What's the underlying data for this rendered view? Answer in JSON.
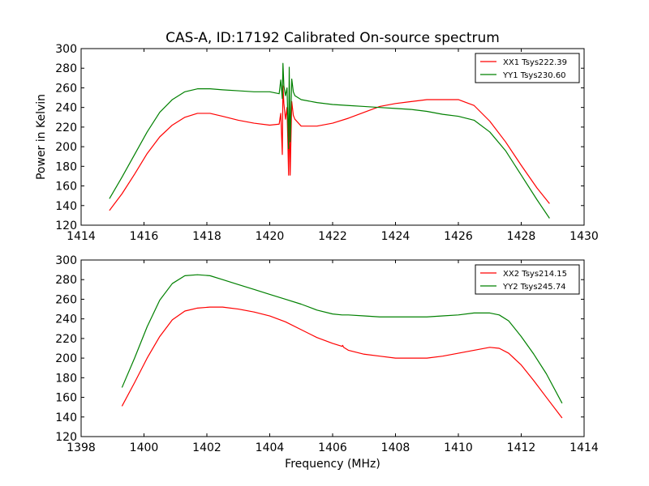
{
  "title": "CAS-A, ID:17192 Calibrated On-source spectrum",
  "colors": {
    "red": "#ff0000",
    "green": "#008000",
    "axes": "#000000",
    "background": "#ffffff"
  },
  "chart_data": [
    {
      "type": "line",
      "ylabel": "Power in Kelvin",
      "xlabel": "",
      "xlim": [
        1414,
        1430
      ],
      "ylim": [
        120,
        300
      ],
      "xticks": [
        1414,
        1416,
        1418,
        1420,
        1422,
        1424,
        1426,
        1428,
        1430
      ],
      "yticks": [
        120,
        140,
        160,
        180,
        200,
        220,
        240,
        260,
        280,
        300
      ],
      "legend_position": "top-right",
      "series": [
        {
          "name": "XX1 Tsys222.39",
          "color": "#ff0000",
          "x": [
            1414.9,
            1415.3,
            1415.7,
            1416.1,
            1416.5,
            1416.9,
            1417.3,
            1417.7,
            1418.1,
            1418.5,
            1419.0,
            1419.5,
            1420.0,
            1420.3,
            1420.35,
            1420.4,
            1420.42,
            1420.45,
            1420.5,
            1420.55,
            1420.6,
            1420.62,
            1420.65,
            1420.7,
            1420.75,
            1420.8,
            1421.0,
            1421.5,
            1422.0,
            1422.5,
            1423.0,
            1423.5,
            1424.0,
            1424.5,
            1425.0,
            1425.5,
            1426.0,
            1426.5,
            1427.0,
            1427.5,
            1428.0,
            1428.5,
            1428.9
          ],
          "y": [
            135,
            152,
            172,
            193,
            210,
            222,
            230,
            234,
            234,
            231,
            227,
            224,
            222,
            223,
            234,
            192,
            262,
            244,
            228,
            240,
            171,
            244,
            171,
            246,
            232,
            228,
            221,
            221,
            224,
            229,
            235,
            241,
            244,
            246,
            248,
            248,
            248,
            242,
            226,
            205,
            181,
            158,
            142
          ]
        },
        {
          "name": "YY1 Tsys230.60",
          "color": "#008000",
          "x": [
            1414.9,
            1415.3,
            1415.7,
            1416.1,
            1416.5,
            1416.9,
            1417.3,
            1417.7,
            1418.1,
            1418.5,
            1419.0,
            1419.5,
            1420.0,
            1420.3,
            1420.35,
            1420.4,
            1420.42,
            1420.45,
            1420.5,
            1420.55,
            1420.6,
            1420.62,
            1420.65,
            1420.7,
            1420.75,
            1420.8,
            1421.0,
            1421.5,
            1422.0,
            1422.5,
            1423.0,
            1423.5,
            1424.0,
            1424.5,
            1425.0,
            1425.5,
            1426.0,
            1426.5,
            1427.0,
            1427.5,
            1428.0,
            1428.5,
            1428.9
          ],
          "y": [
            147,
            169,
            192,
            215,
            235,
            248,
            256,
            259,
            259,
            258,
            257,
            256,
            256,
            254,
            268,
            249,
            285,
            262,
            252,
            260,
            198,
            281,
            205,
            269,
            256,
            252,
            248,
            245,
            243,
            242,
            241,
            240,
            239,
            238,
            236,
            233,
            231,
            227,
            215,
            196,
            171,
            146,
            127
          ]
        }
      ]
    },
    {
      "type": "line",
      "ylabel": "",
      "xlabel": "Frequency (MHz)",
      "xlim": [
        1398,
        1414
      ],
      "ylim": [
        120,
        300
      ],
      "xticks": [
        1398,
        1400,
        1402,
        1404,
        1406,
        1408,
        1410,
        1412,
        1414
      ],
      "yticks": [
        120,
        140,
        160,
        180,
        200,
        220,
        240,
        260,
        280,
        300
      ],
      "legend_position": "top-right",
      "series": [
        {
          "name": "XX2 Tsys214.15",
          "color": "#ff0000",
          "x": [
            1399.3,
            1399.7,
            1400.1,
            1400.5,
            1400.9,
            1401.3,
            1401.7,
            1402.1,
            1402.5,
            1403.0,
            1403.5,
            1404.0,
            1404.5,
            1405.0,
            1405.5,
            1406.0,
            1406.3,
            1406.32,
            1406.35,
            1406.5,
            1407.0,
            1407.5,
            1408.0,
            1408.5,
            1409.0,
            1409.5,
            1410.0,
            1410.5,
            1411.0,
            1411.3,
            1411.6,
            1412.0,
            1412.4,
            1412.8,
            1413.3
          ],
          "y": [
            151,
            175,
            200,
            222,
            239,
            248,
            251,
            252,
            252,
            250,
            247,
            243,
            237,
            229,
            221,
            215,
            212,
            213,
            211,
            208,
            204,
            202,
            200,
            200,
            200,
            202,
            205,
            208,
            211,
            210,
            205,
            193,
            177,
            160,
            139
          ]
        },
        {
          "name": "YY2 Tsys245.74",
          "color": "#008000",
          "x": [
            1399.3,
            1399.7,
            1400.1,
            1400.5,
            1400.9,
            1401.3,
            1401.7,
            1402.1,
            1402.5,
            1403.0,
            1403.5,
            1404.0,
            1404.5,
            1405.0,
            1405.5,
            1406.0,
            1406.3,
            1406.5,
            1407.0,
            1407.5,
            1408.0,
            1408.5,
            1409.0,
            1409.5,
            1410.0,
            1410.5,
            1411.0,
            1411.3,
            1411.6,
            1412.0,
            1412.4,
            1412.8,
            1413.3
          ],
          "y": [
            170,
            200,
            232,
            259,
            276,
            284,
            285,
            284,
            280,
            275,
            270,
            265,
            260,
            255,
            249,
            245,
            244,
            244,
            243,
            242,
            242,
            242,
            242,
            243,
            244,
            246,
            246,
            244,
            238,
            222,
            204,
            184,
            154
          ]
        }
      ]
    }
  ]
}
